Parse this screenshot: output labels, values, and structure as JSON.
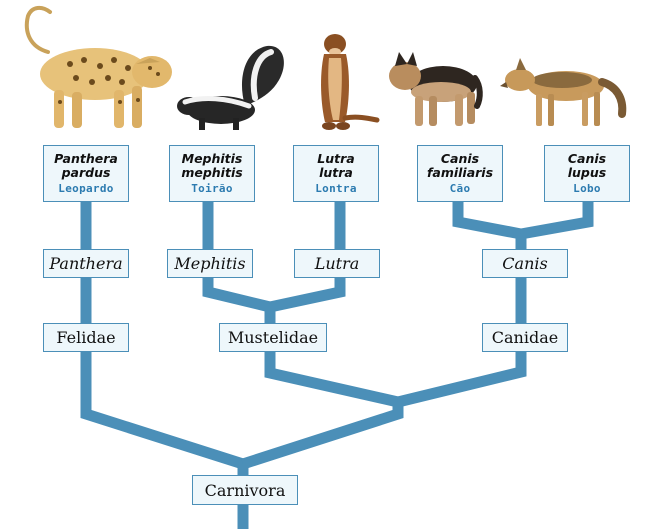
{
  "species": [
    {
      "line1": "Panthera",
      "line2": "pardus",
      "common": "Leopardo"
    },
    {
      "line1": "Mephitis",
      "line2": "mephitis",
      "common": "Toirão"
    },
    {
      "line1": "Lutra",
      "line2": "lutra",
      "common": "Lontra"
    },
    {
      "line1": "Canis",
      "line2": "familiaris",
      "common": "Cão"
    },
    {
      "line1": "Canis",
      "line2": "lupus",
      "common": "Lobo"
    }
  ],
  "genera": [
    "Panthera",
    "Mephitis",
    "Lutra",
    "Canis"
  ],
  "families": [
    "Felidae",
    "Mustelidae",
    "Canidae"
  ],
  "order": "Carnivora",
  "colors": {
    "branch": "#4b8fb8",
    "box_fill": "#eef7fb",
    "box_border": "#4b8fb8",
    "common_name": "#2c7bb0"
  }
}
